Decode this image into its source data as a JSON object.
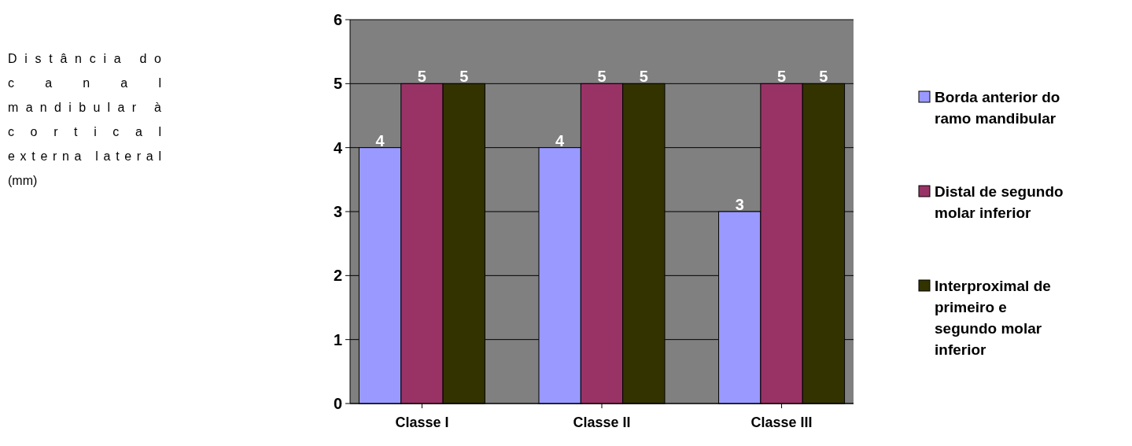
{
  "chart_data": {
    "type": "bar",
    "annotations": [
      "Distância do canal mandibular à cortical externa lateral (mm)"
    ],
    "categories": [
      "Classe I",
      "Classe II",
      "Classe III"
    ],
    "series": [
      {
        "name": "Borda anterior do ramo mandibular",
        "color": "#9999ff",
        "values": [
          4,
          4,
          3
        ]
      },
      {
        "name": "Distal de segundo molar inferior",
        "color": "#993366",
        "values": [
          5,
          5,
          5
        ]
      },
      {
        "name": "Interproximal de primeiro e segundo molar inferior",
        "color": "#333300",
        "values": [
          5,
          5,
          5
        ]
      }
    ],
    "ylim": [
      0,
      6
    ],
    "yticks": [
      0,
      1,
      2,
      3,
      4,
      5,
      6
    ],
    "grid": "y",
    "legend": "right",
    "data_labels": true
  }
}
